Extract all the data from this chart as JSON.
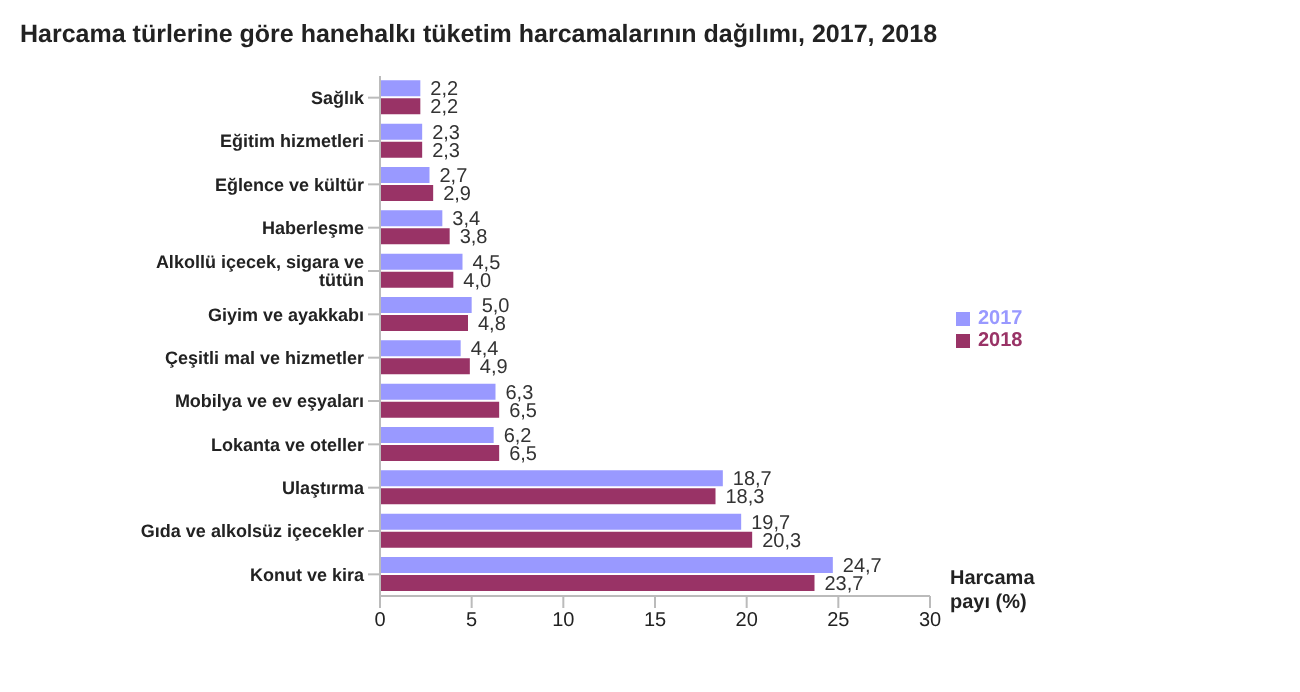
{
  "chart_data": {
    "type": "bar",
    "orientation": "horizontal",
    "title": "Harcama türlerine göre hanehalkı tüketim harcamalarının dağılımı, 2017, 2018",
    "xlabel": "Harcama payı (%)",
    "categories": [
      "Sağlık",
      "Eğitim hizmetleri",
      "Eğlence ve kültür",
      "Haberleşme",
      "Alkollü içecek, sigara ve tütün",
      "Giyim ve ayakkabı",
      "Çeşitli mal ve hizmetler",
      "Mobilya ve ev eşyaları",
      "Lokanta ve oteller",
      "Ulaştırma",
      "Gıda ve alkolsüz içecekler",
      "Konut ve kira"
    ],
    "series": [
      {
        "name": "2017",
        "color": "#9999ff",
        "values": [
          2.2,
          2.3,
          2.7,
          3.4,
          4.5,
          5.0,
          4.4,
          6.3,
          6.2,
          18.7,
          19.7,
          24.7
        ],
        "value_labels": [
          "2,2",
          "2,3",
          "2,7",
          "3,4",
          "4,5",
          "5,0",
          "4,4",
          "6,3",
          "6,2",
          "18,7",
          "19,7",
          "24,7"
        ]
      },
      {
        "name": "2018",
        "color": "#993366",
        "values": [
          2.2,
          2.3,
          2.9,
          3.8,
          4.0,
          4.8,
          4.9,
          6.5,
          6.5,
          18.3,
          20.3,
          23.7
        ],
        "value_labels": [
          "2,2",
          "2,3",
          "2,9",
          "3,8",
          "4,0",
          "4,8",
          "4,9",
          "6,5",
          "6,5",
          "18,3",
          "20,3",
          "23,7"
        ]
      }
    ],
    "xlim": [
      0,
      30
    ],
    "xticks": [
      0,
      5,
      10,
      15,
      20,
      25,
      30
    ],
    "legend": "right"
  }
}
